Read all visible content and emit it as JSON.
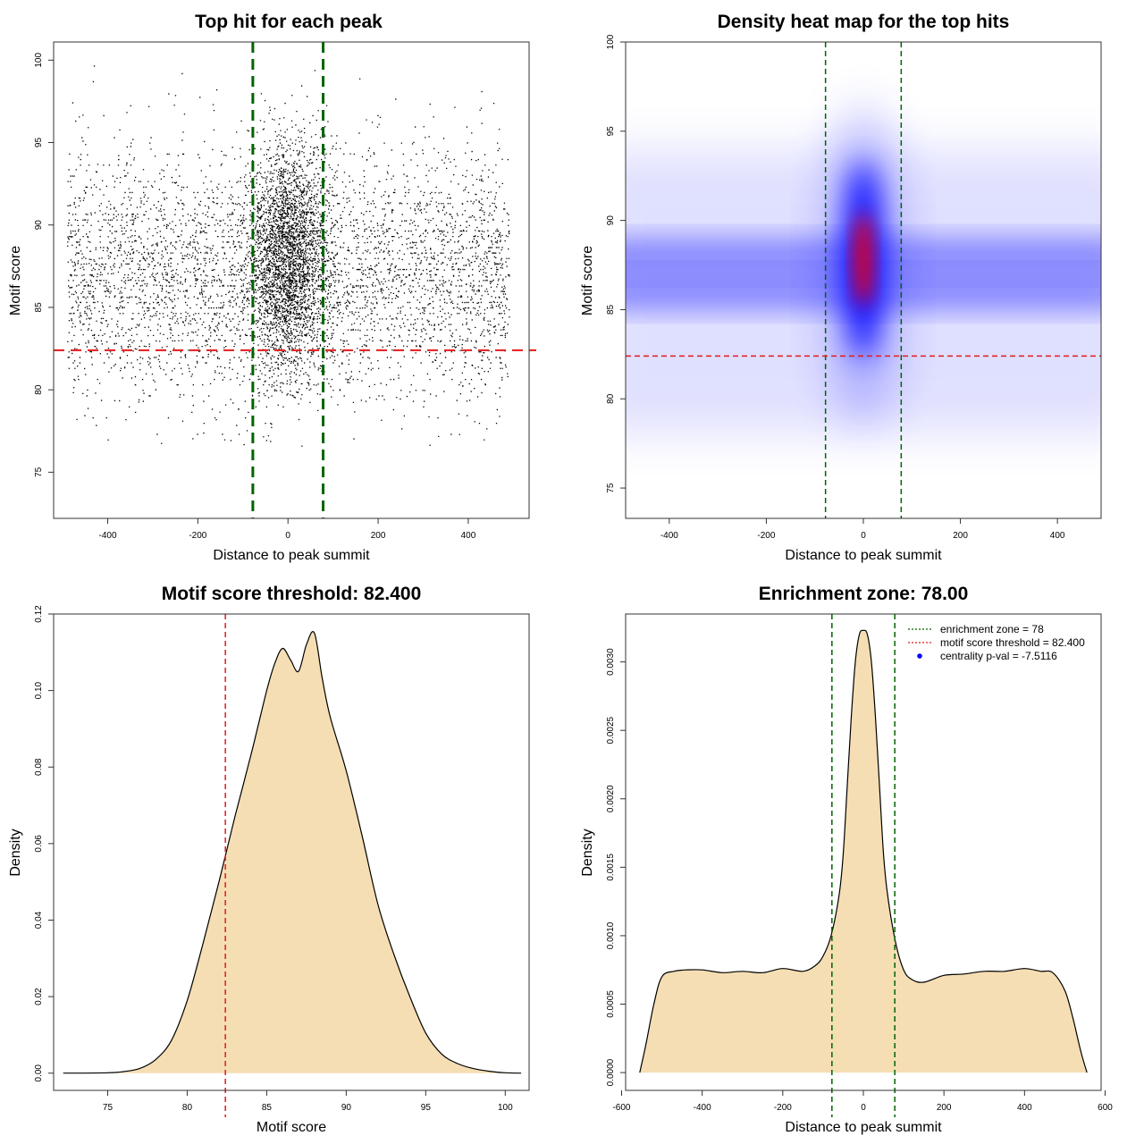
{
  "chart_data": [
    {
      "type": "scatter",
      "title": "Top hit for each peak",
      "xlabel": "Distance to peak summit",
      "ylabel": "Motif score",
      "xlim": [
        -520,
        535
      ],
      "ylim": [
        72.2,
        101.1
      ],
      "xticks": [
        -400,
        -200,
        0,
        200,
        400
      ],
      "yticks": [
        75,
        80,
        85,
        90,
        95,
        100
      ],
      "vlines": [
        -78,
        78
      ],
      "hline": 82.4,
      "vline_color": "#006400",
      "hline_color": "#e41a1c",
      "point_color": "#000000",
      "x_range_points": [
        -490,
        490
      ],
      "center_peak_score": 88,
      "background_modes": [
        86,
        88
      ]
    },
    {
      "type": "heatmap",
      "title": "Density heat map for the top hits",
      "xlabel": "Distance to peak summit",
      "ylabel": "Motif score",
      "xlim": [
        -490,
        490
      ],
      "ylim": [
        73.3,
        100
      ],
      "xticks": [
        -400,
        -200,
        0,
        200,
        400
      ],
      "yticks": [
        75,
        80,
        85,
        90,
        95,
        100
      ],
      "vlines": [
        -78,
        78
      ],
      "hline": 82.4,
      "color_scale": [
        "#ffffff",
        "#0000ff",
        "#ff0000"
      ],
      "peak": {
        "x": 0,
        "y": 87.8
      },
      "bands": [
        86,
        88
      ]
    },
    {
      "type": "area",
      "title": "Motif score threshold: 82.400",
      "xlabel": "Motif score",
      "ylabel": "Density",
      "xlim": [
        71.6,
        101.5
      ],
      "ylim": [
        -0.0045,
        0.12
      ],
      "xticks": [
        75,
        80,
        85,
        90,
        95,
        100
      ],
      "yticks": [
        0.0,
        0.02,
        0.04,
        0.06,
        0.08,
        0.1,
        0.12
      ],
      "ytick_labels": [
        "0.00",
        "0.02",
        "0.04",
        "0.06",
        "0.08",
        "0.10",
        "0.12"
      ],
      "vline": 82.4,
      "fill": "#f5deb3",
      "x": [
        72.2,
        75,
        76,
        77,
        78,
        79,
        80,
        81,
        82,
        83,
        84,
        85,
        85.5,
        86,
        86.5,
        87,
        87.5,
        88,
        88.5,
        89,
        90,
        91,
        92,
        93,
        94,
        95,
        96,
        97,
        98,
        99,
        100,
        101
      ],
      "y": [
        0.0,
        0.0001,
        0.0004,
        0.0012,
        0.0035,
        0.0085,
        0.019,
        0.034,
        0.05,
        0.067,
        0.083,
        0.1,
        0.107,
        0.111,
        0.108,
        0.105,
        0.112,
        0.115,
        0.103,
        0.093,
        0.079,
        0.062,
        0.044,
        0.031,
        0.02,
        0.0105,
        0.005,
        0.0025,
        0.0012,
        0.0005,
        0.0001,
        0.0
      ]
    },
    {
      "type": "area",
      "title": "Enrichment zone: 78.00",
      "xlabel": "Distance to peak summit",
      "ylabel": "Density",
      "xlim": [
        -590,
        590
      ],
      "ylim": [
        -0.00013,
        0.00335
      ],
      "xticks": [
        -600,
        -400,
        -200,
        0,
        200,
        400,
        600
      ],
      "yticks": [
        0.0,
        0.0005,
        0.001,
        0.0015,
        0.002,
        0.0025,
        0.003
      ],
      "ytick_labels": [
        "0.0000",
        "0.0005",
        "0.0010",
        "0.0015",
        "0.0020",
        "0.0025",
        "0.0030"
      ],
      "vlines": [
        -78,
        78
      ],
      "fill": "#f5deb3",
      "x": [
        -555,
        -540,
        -520,
        -500,
        -470,
        -440,
        -400,
        -350,
        -300,
        -250,
        -200,
        -150,
        -120,
        -100,
        -80,
        -60,
        -50,
        -40,
        -30,
        -20,
        -10,
        0,
        10,
        20,
        30,
        40,
        50,
        60,
        80,
        100,
        120,
        150,
        200,
        250,
        300,
        350,
        400,
        440,
        470,
        500,
        520,
        540,
        555
      ],
      "y": [
        0.0,
        0.0002,
        0.0005,
        0.0007,
        0.00074,
        0.00075,
        0.00075,
        0.00073,
        0.00074,
        0.00073,
        0.00076,
        0.00074,
        0.00078,
        0.00085,
        0.001,
        0.0013,
        0.0016,
        0.0021,
        0.0026,
        0.003,
        0.0032,
        0.00323,
        0.0032,
        0.003,
        0.0026,
        0.0021,
        0.0016,
        0.0013,
        0.00095,
        0.00075,
        0.00068,
        0.00066,
        0.00071,
        0.00072,
        0.00074,
        0.00074,
        0.00076,
        0.00074,
        0.00073,
        0.0006,
        0.0004,
        0.00015,
        0.0
      ],
      "legend": [
        {
          "label": "enrichment zone = 78",
          "style": "dotted",
          "color": "#006400"
        },
        {
          "label": "motif score threshold = 82.400",
          "style": "dotted",
          "color": "#e41a1c"
        },
        {
          "label": "centrality p-val = -7.5116",
          "style": "point",
          "color": "#0000ff"
        }
      ],
      "legend_position": "top-right"
    }
  ]
}
